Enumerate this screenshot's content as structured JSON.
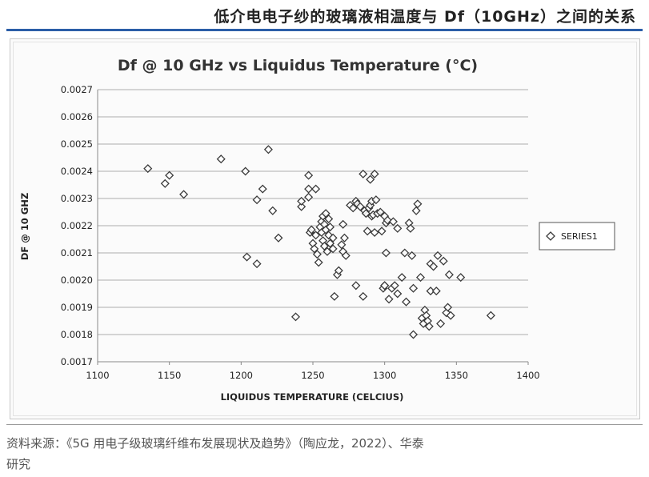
{
  "page": {
    "header_title": "低介电电子纱的玻璃液相温度与 Df（10GHz）之间的关系",
    "source_line1": "资料来源：《5G 用电子级玻璃纤维布发展现状及趋势》（陶应龙，2022）、华泰",
    "source_line2": "研究"
  },
  "colors": {
    "rule": "#2b5ea7",
    "marker": "#3a3a3a",
    "grid": "#bdbdbd"
  },
  "chart_data": {
    "type": "scatter",
    "title": "Df @ 10 GHz vs Liquidus Temperature (°C)",
    "xlabel": "LIQUIDUS TEMPERATURE (CELCIUS)",
    "ylabel": "DF @ 10 GHZ",
    "xlim": [
      1100,
      1400
    ],
    "ylim": [
      0.0017,
      0.0027
    ],
    "x_ticks": [
      "1100",
      "1150",
      "1200",
      "1250",
      "1300",
      "1350",
      "1400"
    ],
    "y_ticks": [
      "0.0017",
      "0.0018",
      "0.0019",
      "0.0020",
      "0.0021",
      "0.0022",
      "0.0023",
      "0.0024",
      "0.0025",
      "0.0026",
      "0.0027"
    ],
    "grid": "horizontal",
    "legend": {
      "position": "right",
      "entries": [
        "SERIES1"
      ]
    },
    "series": [
      {
        "name": "SERIES1",
        "marker": "diamond",
        "points": [
          [
            1135,
            0.00241
          ],
          [
            1147,
            0.002355
          ],
          [
            1150,
            0.002385
          ],
          [
            1160,
            0.002315
          ],
          [
            1186,
            0.002445
          ],
          [
            1203,
            0.0024
          ],
          [
            1204,
            0.002085
          ],
          [
            1211,
            0.00206
          ],
          [
            1211,
            0.002295
          ],
          [
            1215,
            0.002335
          ],
          [
            1219,
            0.00248
          ],
          [
            1222,
            0.002255
          ],
          [
            1226,
            0.002155
          ],
          [
            1238,
            0.001865
          ],
          [
            1242,
            0.00227
          ],
          [
            1242,
            0.00229
          ],
          [
            1247,
            0.002385
          ],
          [
            1247,
            0.002335
          ],
          [
            1247,
            0.002305
          ],
          [
            1248,
            0.002175
          ],
          [
            1249,
            0.002185
          ],
          [
            1250,
            0.002135
          ],
          [
            1251,
            0.002115
          ],
          [
            1252,
            0.002335
          ],
          [
            1252,
            0.002165
          ],
          [
            1253,
            0.002095
          ],
          [
            1254,
            0.002065
          ],
          [
            1255,
            0.002195
          ],
          [
            1256,
            0.002215
          ],
          [
            1256,
            0.002175
          ],
          [
            1257,
            0.002235
          ],
          [
            1257,
            0.002145
          ],
          [
            1258,
            0.002205
          ],
          [
            1258,
            0.002125
          ],
          [
            1259,
            0.002245
          ],
          [
            1259,
            0.002185
          ],
          [
            1260,
            0.002105
          ],
          [
            1261,
            0.002225
          ],
          [
            1261,
            0.002165
          ],
          [
            1262,
            0.002135
          ],
          [
            1262,
            0.002195
          ],
          [
            1264,
            0.002155
          ],
          [
            1264,
            0.002115
          ],
          [
            1265,
            0.00194
          ],
          [
            1267,
            0.00202
          ],
          [
            1268,
            0.002035
          ],
          [
            1270,
            0.00213
          ],
          [
            1271,
            0.002205
          ],
          [
            1271,
            0.002105
          ],
          [
            1272,
            0.002155
          ],
          [
            1273,
            0.00209
          ],
          [
            1276,
            0.002275
          ],
          [
            1278,
            0.002265
          ],
          [
            1280,
            0.00229
          ],
          [
            1280,
            0.00198
          ],
          [
            1281,
            0.00228
          ],
          [
            1283,
            0.00227
          ],
          [
            1285,
            0.00239
          ],
          [
            1285,
            0.00194
          ],
          [
            1286,
            0.002255
          ],
          [
            1287,
            0.002245
          ],
          [
            1288,
            0.00218
          ],
          [
            1289,
            0.002265
          ],
          [
            1290,
            0.00237
          ],
          [
            1290,
            0.002275
          ],
          [
            1291,
            0.002235
          ],
          [
            1291,
            0.00229
          ],
          [
            1292,
            0.00224
          ],
          [
            1293,
            0.002175
          ],
          [
            1293,
            0.00239
          ],
          [
            1294,
            0.002295
          ],
          [
            1295,
            0.002245
          ],
          [
            1297,
            0.00225
          ],
          [
            1298,
            0.00218
          ],
          [
            1299,
            0.00197
          ],
          [
            1300,
            0.002235
          ],
          [
            1300,
            0.00198
          ],
          [
            1300,
            0.00198
          ],
          [
            1301,
            0.00221
          ],
          [
            1301,
            0.0021
          ],
          [
            1302,
            0.00222
          ],
          [
            1303,
            0.00193
          ],
          [
            1305,
            0.00197
          ],
          [
            1306,
            0.002215
          ],
          [
            1307,
            0.00198
          ],
          [
            1309,
            0.00219
          ],
          [
            1309,
            0.00195
          ],
          [
            1312,
            0.00201
          ],
          [
            1314,
            0.0021
          ],
          [
            1315,
            0.00192
          ],
          [
            1317,
            0.00221
          ],
          [
            1318,
            0.00219
          ],
          [
            1319,
            0.00209
          ],
          [
            1320,
            0.0018
          ],
          [
            1320,
            0.00197
          ],
          [
            1322,
            0.002255
          ],
          [
            1323,
            0.00228
          ],
          [
            1325,
            0.00201
          ],
          [
            1326,
            0.00186
          ],
          [
            1327,
            0.00184
          ],
          [
            1328,
            0.00189
          ],
          [
            1329,
            0.00187
          ],
          [
            1330,
            0.00185
          ],
          [
            1331,
            0.00183
          ],
          [
            1332,
            0.00206
          ],
          [
            1332,
            0.00196
          ],
          [
            1334,
            0.00205
          ],
          [
            1336,
            0.00196
          ],
          [
            1337,
            0.00209
          ],
          [
            1339,
            0.00184
          ],
          [
            1341,
            0.00207
          ],
          [
            1343,
            0.00188
          ],
          [
            1344,
            0.0019
          ],
          [
            1345,
            0.00202
          ],
          [
            1346,
            0.00187
          ],
          [
            1353,
            0.00201
          ],
          [
            1374,
            0.00187
          ]
        ]
      }
    ]
  }
}
